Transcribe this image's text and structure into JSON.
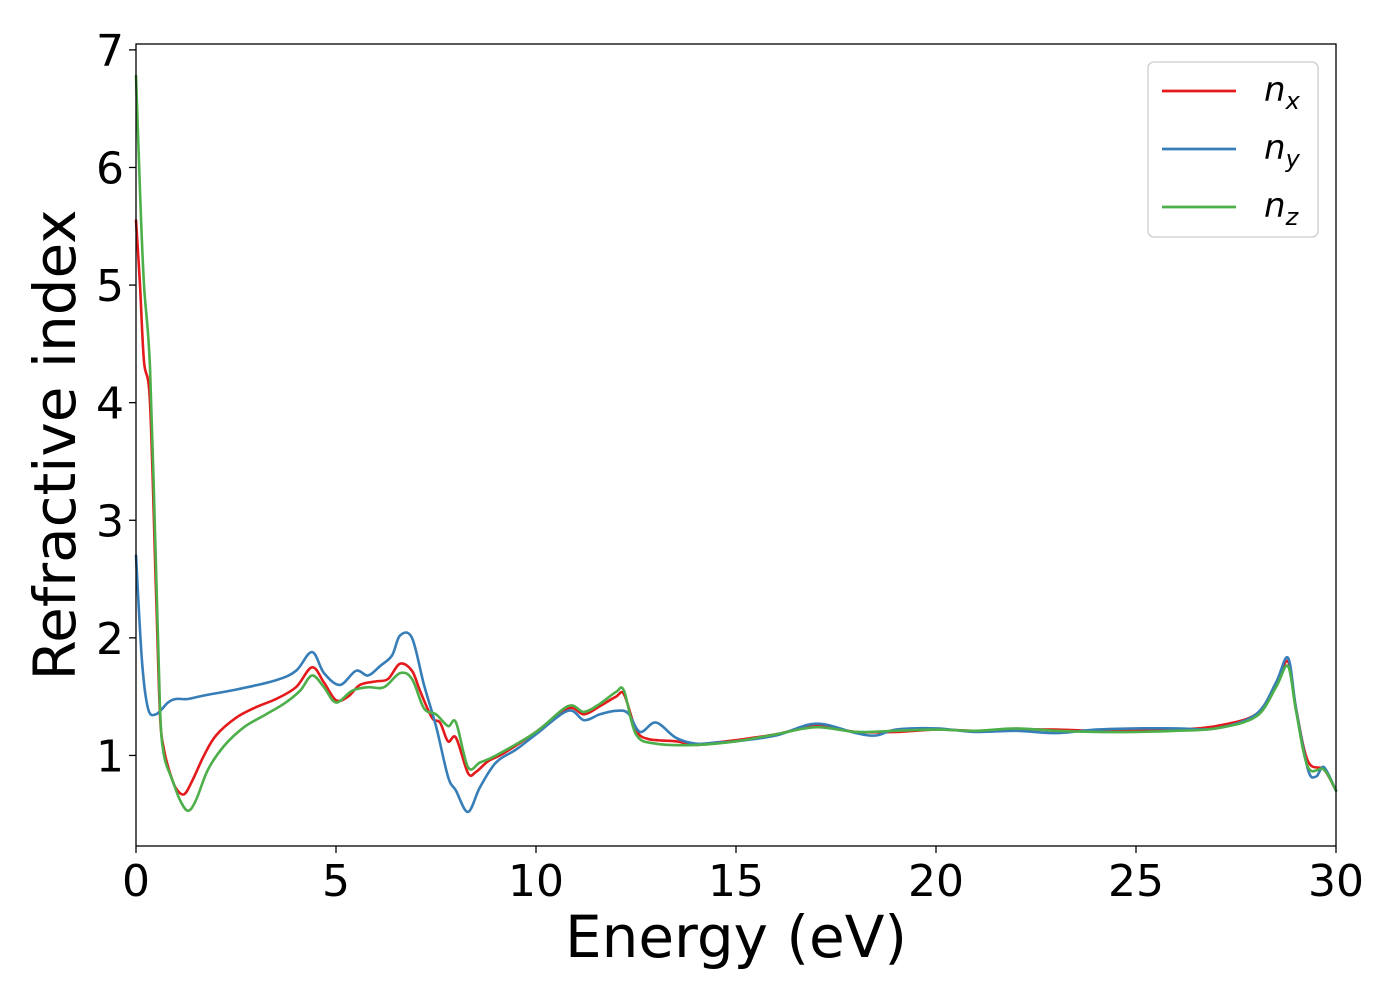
{
  "chart_data": {
    "type": "line",
    "title": "",
    "xlabel": "Energy (eV)",
    "ylabel": "Refractive index",
    "xlim": [
      0,
      30
    ],
    "ylim": [
      0.23,
      7.05
    ],
    "xticks": [
      0,
      5,
      10,
      15,
      20,
      25,
      30
    ],
    "yticks": [
      1,
      2,
      3,
      4,
      5,
      6,
      7
    ],
    "grid": false,
    "legend_position": "top-right",
    "series": [
      {
        "name": "n_x",
        "label_base": "n",
        "label_sub": "x",
        "color": "#e41a1c",
        "points": [
          [
            0,
            5.55
          ],
          [
            0.1,
            5.0
          ],
          [
            0.2,
            4.35
          ],
          [
            0.35,
            4.0
          ],
          [
            0.5,
            2.4
          ],
          [
            0.6,
            1.35
          ],
          [
            0.7,
            1.05
          ],
          [
            0.85,
            0.85
          ],
          [
            1.0,
            0.72
          ],
          [
            1.2,
            0.67
          ],
          [
            1.4,
            0.78
          ],
          [
            1.7,
            1.0
          ],
          [
            2.0,
            1.17
          ],
          [
            2.5,
            1.32
          ],
          [
            3.0,
            1.41
          ],
          [
            3.5,
            1.48
          ],
          [
            4.0,
            1.58
          ],
          [
            4.4,
            1.75
          ],
          [
            4.7,
            1.62
          ],
          [
            5.0,
            1.47
          ],
          [
            5.3,
            1.5
          ],
          [
            5.6,
            1.6
          ],
          [
            6.0,
            1.63
          ],
          [
            6.3,
            1.65
          ],
          [
            6.6,
            1.78
          ],
          [
            6.9,
            1.72
          ],
          [
            7.1,
            1.55
          ],
          [
            7.4,
            1.32
          ],
          [
            7.6,
            1.28
          ],
          [
            7.8,
            1.12
          ],
          [
            8.0,
            1.15
          ],
          [
            8.3,
            0.85
          ],
          [
            8.5,
            0.86
          ],
          [
            8.8,
            0.95
          ],
          [
            9.2,
            1.02
          ],
          [
            10.0,
            1.2
          ],
          [
            10.8,
            1.4
          ],
          [
            11.2,
            1.35
          ],
          [
            11.6,
            1.42
          ],
          [
            12.0,
            1.5
          ],
          [
            12.2,
            1.52
          ],
          [
            12.5,
            1.22
          ],
          [
            12.8,
            1.14
          ],
          [
            13.5,
            1.12
          ],
          [
            14.0,
            1.09
          ],
          [
            14.5,
            1.11
          ],
          [
            15.0,
            1.13
          ],
          [
            16.0,
            1.18
          ],
          [
            17.0,
            1.25
          ],
          [
            18.0,
            1.2
          ],
          [
            19.0,
            1.2
          ],
          [
            20.0,
            1.22
          ],
          [
            21.0,
            1.21
          ],
          [
            22.0,
            1.22
          ],
          [
            23.0,
            1.22
          ],
          [
            24.0,
            1.21
          ],
          [
            25.0,
            1.22
          ],
          [
            26.0,
            1.22
          ],
          [
            27.0,
            1.25
          ],
          [
            28.0,
            1.35
          ],
          [
            28.5,
            1.6
          ],
          [
            28.8,
            1.8
          ],
          [
            29.0,
            1.4
          ],
          [
            29.3,
            0.95
          ],
          [
            29.7,
            0.88
          ],
          [
            30.0,
            0.7
          ]
        ]
      },
      {
        "name": "n_y",
        "label_base": "n",
        "label_sub": "y",
        "color": "#377eb8",
        "points": [
          [
            0,
            2.7
          ],
          [
            0.15,
            1.8
          ],
          [
            0.3,
            1.4
          ],
          [
            0.5,
            1.35
          ],
          [
            0.8,
            1.45
          ],
          [
            1.0,
            1.48
          ],
          [
            1.3,
            1.48
          ],
          [
            1.7,
            1.51
          ],
          [
            2.5,
            1.56
          ],
          [
            3.5,
            1.64
          ],
          [
            4.0,
            1.72
          ],
          [
            4.4,
            1.88
          ],
          [
            4.7,
            1.7
          ],
          [
            5.1,
            1.6
          ],
          [
            5.5,
            1.72
          ],
          [
            5.8,
            1.68
          ],
          [
            6.1,
            1.76
          ],
          [
            6.4,
            1.85
          ],
          [
            6.6,
            2.02
          ],
          [
            6.9,
            2.0
          ],
          [
            7.2,
            1.6
          ],
          [
            7.5,
            1.25
          ],
          [
            7.8,
            0.82
          ],
          [
            8.0,
            0.7
          ],
          [
            8.3,
            0.52
          ],
          [
            8.6,
            0.73
          ],
          [
            9.0,
            0.94
          ],
          [
            9.5,
            1.05
          ],
          [
            10.0,
            1.18
          ],
          [
            10.8,
            1.38
          ],
          [
            11.2,
            1.3
          ],
          [
            11.6,
            1.35
          ],
          [
            12.0,
            1.38
          ],
          [
            12.3,
            1.36
          ],
          [
            12.6,
            1.2
          ],
          [
            13.0,
            1.28
          ],
          [
            13.5,
            1.15
          ],
          [
            14.0,
            1.1
          ],
          [
            14.5,
            1.11
          ],
          [
            15.0,
            1.12
          ],
          [
            16.0,
            1.17
          ],
          [
            17.0,
            1.27
          ],
          [
            18.0,
            1.19
          ],
          [
            18.5,
            1.17
          ],
          [
            19.0,
            1.22
          ],
          [
            20.0,
            1.23
          ],
          [
            21.0,
            1.2
          ],
          [
            22.0,
            1.21
          ],
          [
            23.0,
            1.19
          ],
          [
            24.0,
            1.22
          ],
          [
            25.0,
            1.23
          ],
          [
            26.0,
            1.23
          ],
          [
            27.0,
            1.23
          ],
          [
            28.0,
            1.35
          ],
          [
            28.5,
            1.62
          ],
          [
            28.8,
            1.83
          ],
          [
            29.0,
            1.4
          ],
          [
            29.3,
            0.88
          ],
          [
            29.5,
            0.82
          ],
          [
            29.7,
            0.9
          ],
          [
            30.0,
            0.7
          ]
        ]
      },
      {
        "name": "n_z",
        "label_base": "n",
        "label_sub": "z",
        "color": "#4daf4a",
        "points": [
          [
            0,
            6.78
          ],
          [
            0.1,
            5.8
          ],
          [
            0.2,
            5.0
          ],
          [
            0.35,
            4.3
          ],
          [
            0.5,
            2.6
          ],
          [
            0.6,
            1.4
          ],
          [
            0.7,
            1.0
          ],
          [
            0.9,
            0.8
          ],
          [
            1.1,
            0.62
          ],
          [
            1.3,
            0.53
          ],
          [
            1.5,
            0.62
          ],
          [
            1.8,
            0.88
          ],
          [
            2.2,
            1.08
          ],
          [
            2.7,
            1.24
          ],
          [
            3.2,
            1.34
          ],
          [
            3.7,
            1.44
          ],
          [
            4.1,
            1.55
          ],
          [
            4.4,
            1.68
          ],
          [
            4.7,
            1.58
          ],
          [
            5.0,
            1.45
          ],
          [
            5.4,
            1.55
          ],
          [
            5.8,
            1.58
          ],
          [
            6.2,
            1.58
          ],
          [
            6.6,
            1.7
          ],
          [
            6.9,
            1.65
          ],
          [
            7.2,
            1.4
          ],
          [
            7.5,
            1.35
          ],
          [
            7.8,
            1.25
          ],
          [
            8.0,
            1.28
          ],
          [
            8.3,
            0.9
          ],
          [
            8.6,
            0.94
          ],
          [
            9.0,
            1.0
          ],
          [
            10.0,
            1.2
          ],
          [
            10.8,
            1.42
          ],
          [
            11.2,
            1.37
          ],
          [
            11.6,
            1.44
          ],
          [
            12.0,
            1.54
          ],
          [
            12.2,
            1.55
          ],
          [
            12.5,
            1.18
          ],
          [
            13.0,
            1.1
          ],
          [
            14.0,
            1.09
          ],
          [
            15.0,
            1.12
          ],
          [
            16.0,
            1.18
          ],
          [
            17.0,
            1.24
          ],
          [
            18.0,
            1.2
          ],
          [
            19.0,
            1.21
          ],
          [
            20.0,
            1.22
          ],
          [
            21.0,
            1.21
          ],
          [
            22.0,
            1.23
          ],
          [
            23.0,
            1.21
          ],
          [
            24.0,
            1.2
          ],
          [
            25.0,
            1.2
          ],
          [
            26.0,
            1.21
          ],
          [
            27.0,
            1.23
          ],
          [
            28.0,
            1.33
          ],
          [
            28.5,
            1.58
          ],
          [
            28.8,
            1.76
          ],
          [
            29.0,
            1.38
          ],
          [
            29.3,
            0.9
          ],
          [
            29.7,
            0.88
          ],
          [
            30.0,
            0.7
          ]
        ]
      }
    ]
  }
}
